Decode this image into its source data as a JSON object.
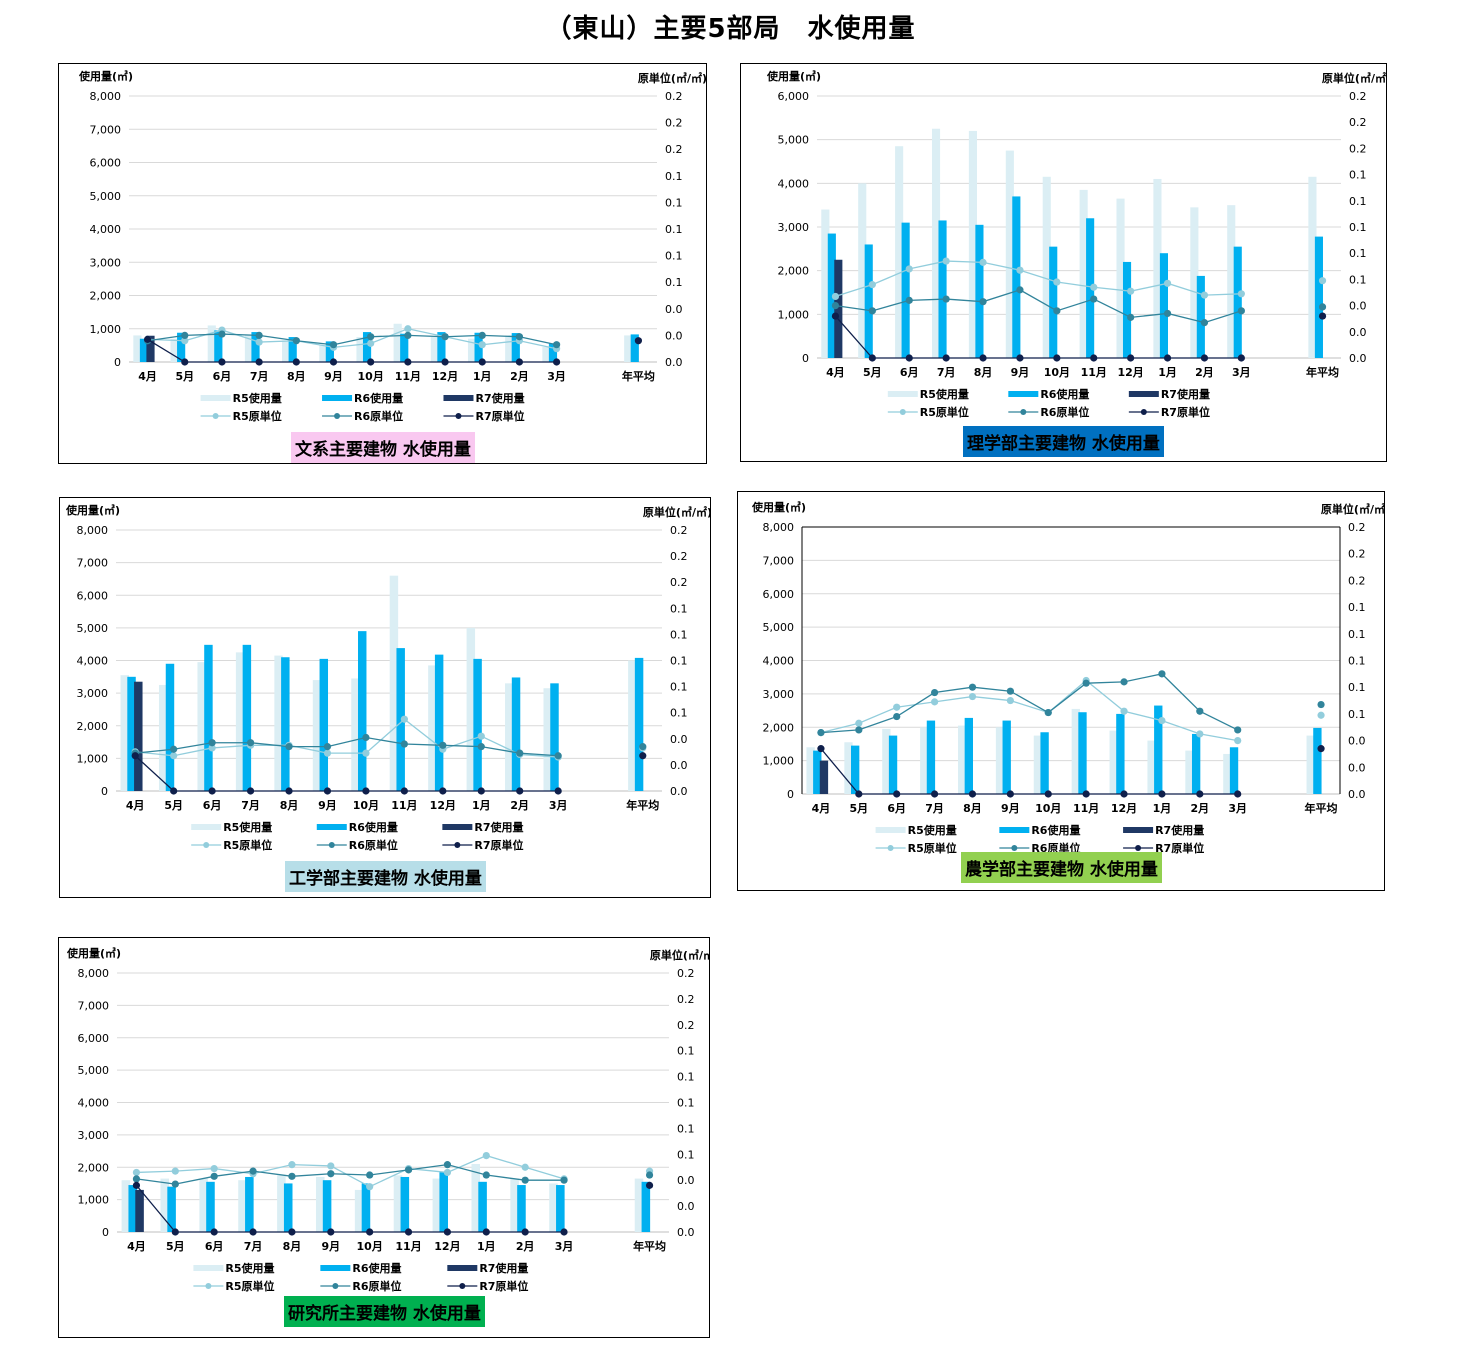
{
  "page_title": "（東山）主要5部局　水使用量",
  "colors": {
    "r5_bar": "#dbeef4",
    "r6_bar": "#00b0f0",
    "r7_bar": "#1f3864",
    "r5_line": "#92cddc",
    "r6_line": "#31849b",
    "r7_line": "#0f1f4b",
    "grid": "#d9d9d9"
  },
  "legend": {
    "r5_use": "R5使用量",
    "r6_use": "R6使用量",
    "r7_use": "R7使用量",
    "r5_unit": "R5原単位",
    "r6_unit": "R6原単位",
    "r7_unit": "R7原単位"
  },
  "chart_data": [
    {
      "type": "bar",
      "caption": "文系主要建物 水使用量",
      "caption_bg": "#f9c8f0",
      "caption_color": "#000000",
      "ylabel": "使用量(㎥)",
      "y2label": "原単位(㎥/㎡)",
      "categories": [
        "4月",
        "5月",
        "6月",
        "7月",
        "8月",
        "9月",
        "10月",
        "11月",
        "12月",
        "1月",
        "2月",
        "3月",
        "年平均"
      ],
      "ylim": [
        0,
        8000
      ],
      "yticks": [
        "8,000",
        "7,000",
        "6,000",
        "5,000",
        "4,000",
        "3,000",
        "2,000",
        "1,000",
        "0"
      ],
      "y2ticks": [
        "0.2",
        "0.2",
        "0.2",
        "0.1",
        "0.1",
        "0.1",
        "0.1",
        "0.1",
        "0.0",
        "0.0",
        "0.0"
      ],
      "y2lim": [
        0,
        0.2
      ],
      "series": [
        {
          "name": "R5使用量",
          "kind": "bar",
          "values": [
            800,
            700,
            1100,
            800,
            650,
            500,
            750,
            1150,
            750,
            700,
            800,
            450,
            800
          ]
        },
        {
          "name": "R6使用量",
          "kind": "bar",
          "values": [
            700,
            880,
            950,
            900,
            750,
            620,
            900,
            850,
            900,
            880,
            870,
            560,
            830
          ]
        },
        {
          "name": "R7使用量",
          "kind": "bar",
          "values": [
            790,
            null,
            null,
            null,
            null,
            null,
            null,
            null,
            null,
            null,
            null,
            null,
            null
          ]
        },
        {
          "name": "R5原単位",
          "kind": "line",
          "values": [
            0.017,
            0.016,
            0.024,
            0.015,
            0.016,
            0.011,
            0.014,
            0.025,
            0.019,
            0.013,
            0.016,
            0.01,
            null
          ]
        },
        {
          "name": "R6原単位",
          "kind": "line",
          "values": [
            0.016,
            0.02,
            0.021,
            0.02,
            0.016,
            0.013,
            0.019,
            0.02,
            0.019,
            0.02,
            0.019,
            0.013,
            null
          ]
        },
        {
          "name": "R7原単位",
          "kind": "line",
          "values": [
            0.017,
            0,
            0,
            0,
            0,
            0,
            0,
            0,
            0,
            0,
            0,
            0,
            0.016
          ]
        }
      ]
    },
    {
      "type": "bar",
      "caption": "理学部主要建物 水使用量",
      "caption_bg": "#0070c0",
      "caption_color": "#000000",
      "ylabel": "使用量(㎥)",
      "y2label": "原単位(㎥/㎡)",
      "categories": [
        "4月",
        "5月",
        "6月",
        "7月",
        "8月",
        "9月",
        "10月",
        "11月",
        "12月",
        "1月",
        "2月",
        "3月",
        "年平均"
      ],
      "ylim": [
        0,
        6000
      ],
      "yticks": [
        "6,000",
        "5,000",
        "4,000",
        "3,000",
        "2,000",
        "1,000",
        "0"
      ],
      "y2ticks": [
        "0.2",
        "0.2",
        "0.2",
        "0.1",
        "0.1",
        "0.1",
        "0.1",
        "0.1",
        "0.0",
        "0.0",
        "0.0"
      ],
      "y2lim": [
        0,
        0.2
      ],
      "series": [
        {
          "name": "R5使用量",
          "kind": "bar",
          "values": [
            3400,
            4000,
            4850,
            5250,
            5200,
            4750,
            4150,
            3850,
            3650,
            4100,
            3450,
            3500,
            4150
          ]
        },
        {
          "name": "R6使用量",
          "kind": "bar",
          "values": [
            2850,
            2600,
            3100,
            3150,
            3050,
            3700,
            2550,
            3200,
            2200,
            2400,
            1880,
            2550,
            2780
          ]
        },
        {
          "name": "R7使用量",
          "kind": "bar",
          "values": [
            2250,
            null,
            null,
            null,
            null,
            null,
            null,
            null,
            null,
            null,
            null,
            null,
            null
          ]
        },
        {
          "name": "R5原単位",
          "kind": "line",
          "values": [
            0.047,
            0.056,
            0.068,
            0.074,
            0.073,
            0.067,
            0.058,
            0.054,
            0.051,
            0.057,
            0.048,
            0.049,
            0.059
          ]
        },
        {
          "name": "R6原単位",
          "kind": "line",
          "values": [
            0.04,
            0.036,
            0.044,
            0.045,
            0.043,
            0.052,
            0.036,
            0.045,
            0.031,
            0.034,
            0.027,
            0.036,
            0.039
          ]
        },
        {
          "name": "R7原単位",
          "kind": "line",
          "values": [
            0.032,
            0,
            0,
            0,
            0,
            0,
            0,
            0,
            0,
            0,
            0,
            0,
            0.032
          ]
        }
      ]
    },
    {
      "type": "bar",
      "caption": "工学部主要建物 水使用量",
      "caption_bg": "#b7dee8",
      "caption_color": "#000000",
      "ylabel": "使用量(㎥)",
      "y2label": "原単位(㎥/㎡)",
      "categories": [
        "4月",
        "5月",
        "6月",
        "7月",
        "8月",
        "9月",
        "10月",
        "11月",
        "12月",
        "1月",
        "2月",
        "3月",
        "年平均"
      ],
      "ylim": [
        0,
        8000
      ],
      "yticks": [
        "8,000",
        "7,000",
        "6,000",
        "5,000",
        "4,000",
        "3,000",
        "2,000",
        "1,000",
        "0"
      ],
      "y2ticks": [
        "0.2",
        "0.2",
        "0.2",
        "0.1",
        "0.1",
        "0.1",
        "0.1",
        "0.1",
        "0.0",
        "0.0",
        "0.0"
      ],
      "y2lim": [
        0,
        0.2
      ],
      "series": [
        {
          "name": "R5使用量",
          "kind": "bar",
          "values": [
            3550,
            3250,
            3950,
            4250,
            4150,
            3400,
            3450,
            6600,
            3850,
            5000,
            3300,
            3150,
            4000
          ]
        },
        {
          "name": "R6使用量",
          "kind": "bar",
          "values": [
            3500,
            3900,
            4480,
            4480,
            4100,
            4050,
            4900,
            4380,
            4180,
            4050,
            3480,
            3300,
            4080
          ]
        },
        {
          "name": "R7使用量",
          "kind": "bar",
          "values": [
            3350,
            null,
            null,
            null,
            null,
            null,
            null,
            null,
            null,
            null,
            null,
            null,
            null
          ]
        },
        {
          "name": "R5原単位",
          "kind": "line",
          "values": [
            0.03,
            0.027,
            0.033,
            0.035,
            0.035,
            0.029,
            0.029,
            0.055,
            0.032,
            0.042,
            0.028,
            0.026,
            0.033
          ]
        },
        {
          "name": "R6原単位",
          "kind": "line",
          "values": [
            0.029,
            0.032,
            0.037,
            0.037,
            0.034,
            0.034,
            0.041,
            0.036,
            0.035,
            0.034,
            0.029,
            0.027,
            0.034
          ]
        },
        {
          "name": "R7原単位",
          "kind": "line",
          "values": [
            0.027,
            0,
            0,
            0,
            0,
            0,
            0,
            0,
            0,
            0,
            0,
            0,
            0.027
          ]
        }
      ]
    },
    {
      "type": "bar",
      "caption": "農学部主要建物 水使用量",
      "caption_bg": "#92d050",
      "caption_color": "#000000",
      "ylabel": "使用量(㎥)",
      "y2label": "原単位(㎥/㎡)",
      "categories": [
        "4月",
        "5月",
        "6月",
        "7月",
        "8月",
        "9月",
        "10月",
        "11月",
        "12月",
        "1月",
        "2月",
        "3月",
        "年平均"
      ],
      "ylim": [
        0,
        8000
      ],
      "yticks": [
        "8,000",
        "7,000",
        "6,000",
        "5,000",
        "4,000",
        "3,000",
        "2,000",
        "1,000",
        "0"
      ],
      "y2ticks": [
        "0.2",
        "0.2",
        "0.2",
        "0.1",
        "0.1",
        "0.1",
        "0.1",
        "0.1",
        "0.0",
        "0.0",
        "0.0"
      ],
      "y2lim": [
        0,
        0.2
      ],
      "series": [
        {
          "name": "R5使用量",
          "kind": "bar",
          "values": [
            1400,
            1550,
            1950,
            2000,
            2050,
            2000,
            1750,
            2550,
            1900,
            1600,
            1300,
            1200,
            1750
          ]
        },
        {
          "name": "R6使用量",
          "kind": "bar",
          "values": [
            1300,
            1450,
            1750,
            2200,
            2280,
            2200,
            1850,
            2450,
            2400,
            2650,
            1800,
            1400,
            1980
          ]
        },
        {
          "name": "R7使用量",
          "kind": "bar",
          "values": [
            1000,
            null,
            null,
            null,
            null,
            null,
            null,
            null,
            null,
            null,
            null,
            null,
            null
          ]
        },
        {
          "name": "R5原単位",
          "kind": "line",
          "values": [
            0.046,
            0.053,
            0.065,
            0.069,
            0.073,
            0.07,
            0.061,
            0.085,
            0.062,
            0.055,
            0.045,
            0.04,
            0.059
          ]
        },
        {
          "name": "R6原単位",
          "kind": "line",
          "values": [
            0.046,
            0.048,
            0.058,
            0.076,
            0.08,
            0.077,
            0.061,
            0.083,
            0.084,
            0.09,
            0.062,
            0.048,
            0.067
          ]
        },
        {
          "name": "R7原単位",
          "kind": "line",
          "values": [
            0.034,
            0,
            0,
            0,
            0,
            0,
            0,
            0,
            0,
            0,
            0,
            0,
            0.034
          ]
        }
      ]
    },
    {
      "type": "bar",
      "caption": "研究所主要建物 水使用量",
      "caption_bg": "#00b050",
      "caption_color": "#000000",
      "ylabel": "使用量(㎥)",
      "y2label": "原単位(㎥/㎡)",
      "categories": [
        "4月",
        "5月",
        "6月",
        "7月",
        "8月",
        "9月",
        "10月",
        "11月",
        "12月",
        "1月",
        "2月",
        "3月",
        "年平均"
      ],
      "ylim": [
        0,
        8000
      ],
      "yticks": [
        "8,000",
        "7,000",
        "6,000",
        "5,000",
        "4,000",
        "3,000",
        "2,000",
        "1,000",
        "0"
      ],
      "y2ticks": [
        "0.2",
        "0.2",
        "0.2",
        "0.1",
        "0.1",
        "0.1",
        "0.1",
        "0.1",
        "0.0",
        "0.0",
        "0.0"
      ],
      "y2lim": [
        0,
        0.2
      ],
      "series": [
        {
          "name": "R5使用量",
          "kind": "bar",
          "values": [
            1600,
            1650,
            1650,
            1600,
            1750,
            1700,
            1300,
            1750,
            1650,
            2100,
            1650,
            1500,
            1650
          ]
        },
        {
          "name": "R6使用量",
          "kind": "bar",
          "values": [
            1450,
            1400,
            1550,
            1700,
            1500,
            1600,
            1500,
            1700,
            1850,
            1550,
            1450,
            1450,
            1550
          ]
        },
        {
          "name": "R7使用量",
          "kind": "bar",
          "values": [
            1300,
            null,
            null,
            null,
            null,
            null,
            null,
            null,
            null,
            null,
            null,
            null,
            null
          ]
        },
        {
          "name": "R5原単位",
          "kind": "line",
          "values": [
            0.046,
            0.047,
            0.049,
            0.045,
            0.052,
            0.051,
            0.035,
            0.049,
            0.046,
            0.059,
            0.05,
            0.041,
            0.047
          ]
        },
        {
          "name": "R6原単位",
          "kind": "line",
          "values": [
            0.041,
            0.037,
            0.043,
            0.047,
            0.043,
            0.045,
            0.044,
            0.048,
            0.052,
            0.044,
            0.04,
            0.04,
            0.044
          ]
        },
        {
          "name": "R7原単位",
          "kind": "line",
          "values": [
            0.036,
            0,
            0,
            0,
            0,
            0,
            0,
            0,
            0,
            0,
            0,
            0,
            0.036
          ]
        }
      ]
    }
  ]
}
